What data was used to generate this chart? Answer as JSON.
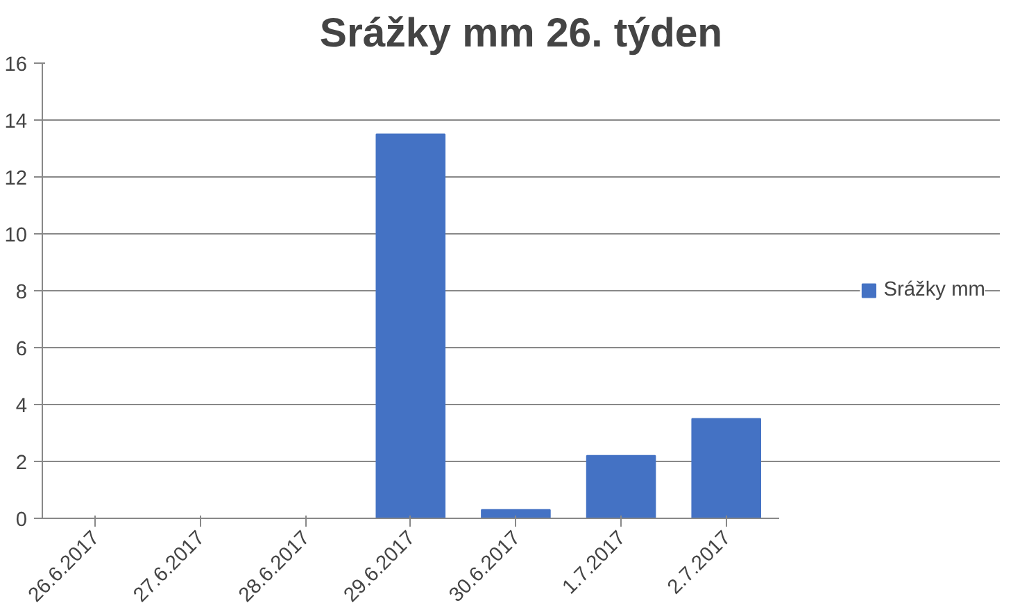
{
  "chart_data": {
    "type": "bar",
    "title": "Srážky mm 26. týden",
    "categories": [
      "26.6.2017",
      "27.6.2017",
      "28.6.2017",
      "29.6.2017",
      "30.6.2017",
      "1.7.2017",
      "2.7.2017"
    ],
    "series": [
      {
        "name": "Srážky mm",
        "color": "#4472c4",
        "values": [
          0,
          0,
          0,
          13.5,
          0.3,
          2.2,
          3.5
        ]
      }
    ],
    "ylim": [
      0,
      16
    ],
    "yticks": [
      0,
      2,
      4,
      6,
      8,
      10,
      12,
      14,
      16
    ],
    "grid": "y",
    "legend": "right"
  }
}
